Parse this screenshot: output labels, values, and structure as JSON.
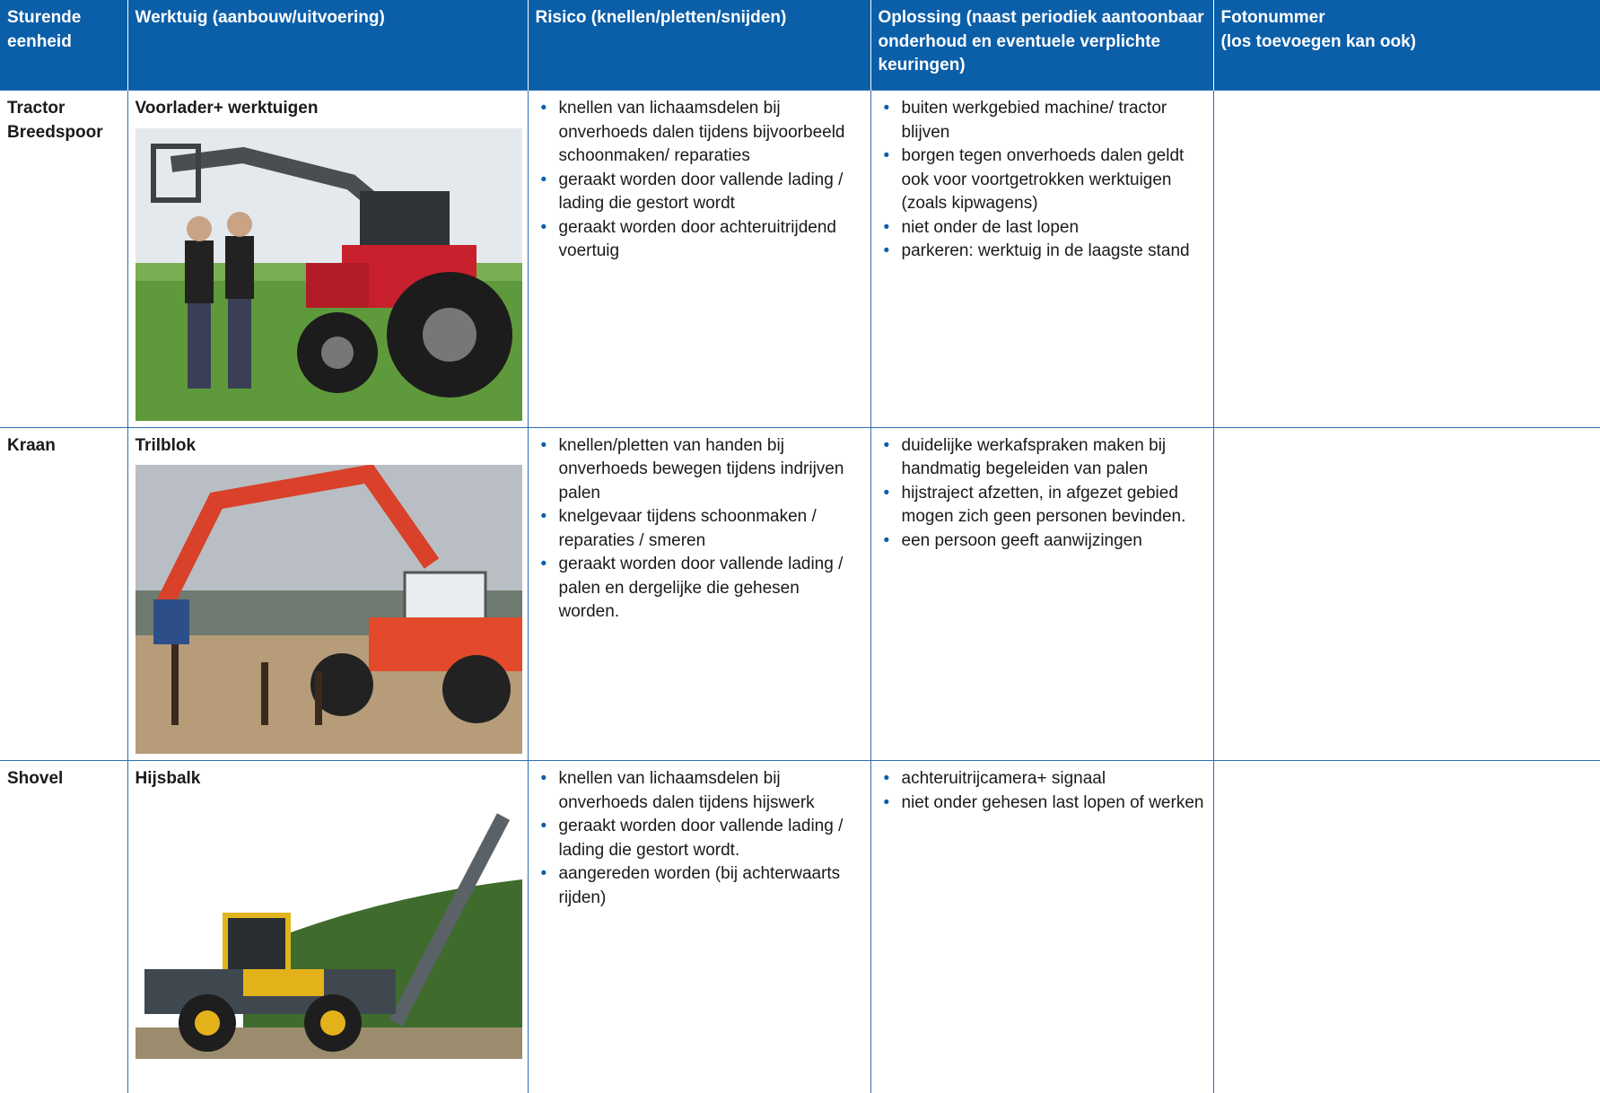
{
  "table": {
    "header": [
      "Sturende eenheid",
      "Werktuig (aanbouw/uitvoering)",
      "Risico (knellen/pletten/snijden)",
      "Oplossing (naast periodiek aantoonbaar onderhoud en eventuele verplichte keuringen)",
      "Fotonummer\n(los toevoegen kan ook)"
    ],
    "rows": [
      {
        "unit": "Tractor Breedspoor",
        "tool": "Voorlader+ werktuigen",
        "risks": [
          "knellen van lichaamsdelen bij onverhoeds dalen tijdens bijvoorbeeld schoonmaken/ reparaties",
          "geraakt worden door vallende lading / lading die gestort wordt",
          "geraakt worden door achteruitrijdend voertuig"
        ],
        "solutions": [
          "buiten werkgebied machine/ tractor blijven",
          "borgen tegen onverhoeds dalen geldt ook voor voortgetrokken werktuigen (zoals kipwagens)",
          "niet onder de last lopen",
          "parkeren: werktuig in de laagste stand"
        ]
      },
      {
        "unit": "Kraan",
        "tool": "Trilblok",
        "risks": [
          "knellen/pletten van handen bij onverhoeds bewegen tijdens indrijven palen",
          "knelgevaar tijdens schoonmaken / reparaties / smeren",
          "geraakt worden door vallende lading / palen en dergelijke die gehesen worden."
        ],
        "solutions": [
          "duidelijke werkafspraken maken bij handmatig begeleiden van palen",
          "hijstraject afzetten, in afgezet gebied mogen zich geen personen bevinden.",
          "een persoon geeft aanwijzingen"
        ]
      },
      {
        "unit": "Shovel",
        "tool": "Hijsbalk",
        "risks": [
          "knellen van lichaamsdelen bij onverhoeds dalen tijdens hijswerk",
          "geraakt worden door vallende lading / lading die gestort wordt.",
          "aangereden worden (bij achterwaarts rijden)"
        ],
        "solutions": [
          "achteruitrijcamera+ signaal",
          "niet onder gehesen last lopen of werken"
        ]
      }
    ]
  }
}
